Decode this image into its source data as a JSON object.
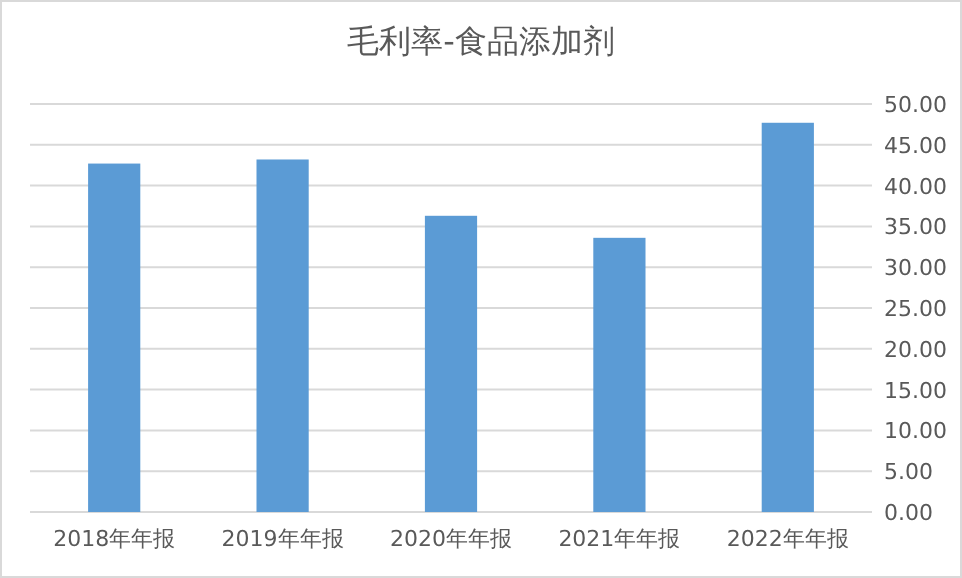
{
  "chart_data": {
    "type": "bar",
    "title": "毛利率-食品添加剂",
    "categories": [
      "2018年年报",
      "2019年年报",
      "2020年年报",
      "2021年年报",
      "2022年年报"
    ],
    "values": [
      42.7,
      43.2,
      36.3,
      33.6,
      47.7
    ],
    "color": "#5b9bd5",
    "ylim": [
      0,
      50
    ],
    "yticks": [
      {
        "value": 0,
        "label": "0.00"
      },
      {
        "value": 5,
        "label": "5.00"
      },
      {
        "value": 10,
        "label": "10.00"
      },
      {
        "value": 15,
        "label": "15.00"
      },
      {
        "value": 20,
        "label": "20.00"
      },
      {
        "value": 25,
        "label": "25.00"
      },
      {
        "value": 30,
        "label": "30.00"
      },
      {
        "value": 35,
        "label": "35.00"
      },
      {
        "value": 40,
        "label": "40.00"
      },
      {
        "value": 45,
        "label": "45.00"
      },
      {
        "value": 50,
        "label": "50.00"
      }
    ],
    "grid": "y"
  }
}
